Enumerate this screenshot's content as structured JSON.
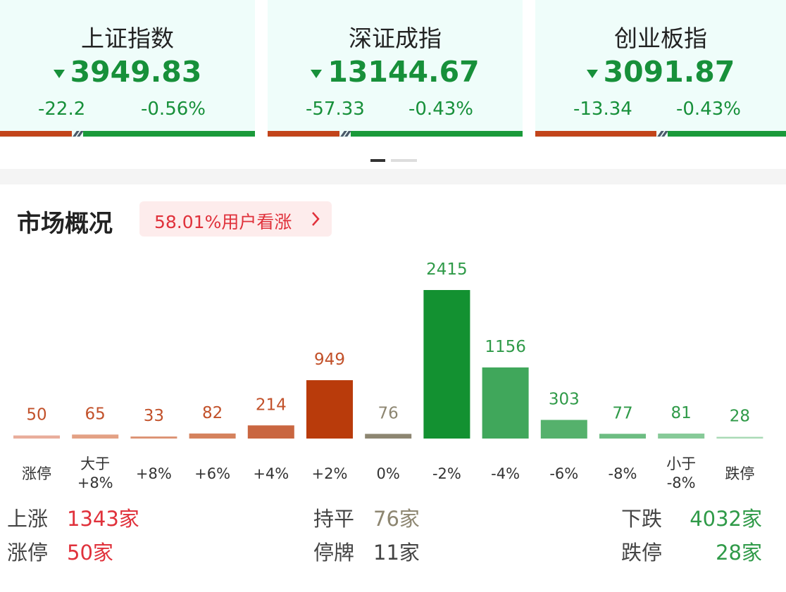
{
  "index_cards": [
    {
      "name": "上证指数",
      "value": "3949.83",
      "change": "-22.2",
      "change_pct": "-0.56%"
    },
    {
      "name": "深证成指",
      "value": "13144.67",
      "change": "-57.33",
      "change_pct": "-0.43%"
    },
    {
      "name": "创业板指",
      "value": "3091.87",
      "change": "-13.34",
      "change_pct": "-0.43%"
    }
  ],
  "section_title": "市场概况",
  "sentiment_badge": "58.01%用户看涨",
  "chart_data": {
    "type": "bar",
    "categories": [
      "涨停",
      "大于\n+8%",
      "+8%",
      "+6%",
      "+4%",
      "+2%",
      "0%",
      "-2%",
      "-4%",
      "-6%",
      "-8%",
      "小于\n-8%",
      "跌停"
    ],
    "values": [
      50,
      65,
      33,
      82,
      214,
      949,
      76,
      2415,
      1156,
      303,
      77,
      81,
      28
    ],
    "colors": [
      "#e9ad9b",
      "#e3a184",
      "#dc9272",
      "#d5825d",
      "#c96640",
      "#b93b0b",
      "#8d8671",
      "#139131",
      "#40a75b",
      "#55b16c",
      "#6dbd82",
      "#87ca98",
      "#a9dab5"
    ],
    "label_colors": [
      "#c2512a",
      "#c2512a",
      "#c2512a",
      "#c2512a",
      "#c2512a",
      "#c2512a",
      "#8d8671",
      "#2f9a48",
      "#2f9a48",
      "#2f9a48",
      "#2f9a48",
      "#2f9a48",
      "#2f9a48"
    ]
  },
  "summary": {
    "rise_label": "上涨",
    "rise_value": "1343家",
    "flat_label": "持平",
    "flat_value": "76家",
    "fall_label": "下跌",
    "fall_value": "4032家",
    "limit_up_label": "涨停",
    "limit_up_value": "50家",
    "suspended_label": "停牌",
    "suspended_value": "11家",
    "limit_down_label": "跌停",
    "limit_down_value": "28家"
  }
}
